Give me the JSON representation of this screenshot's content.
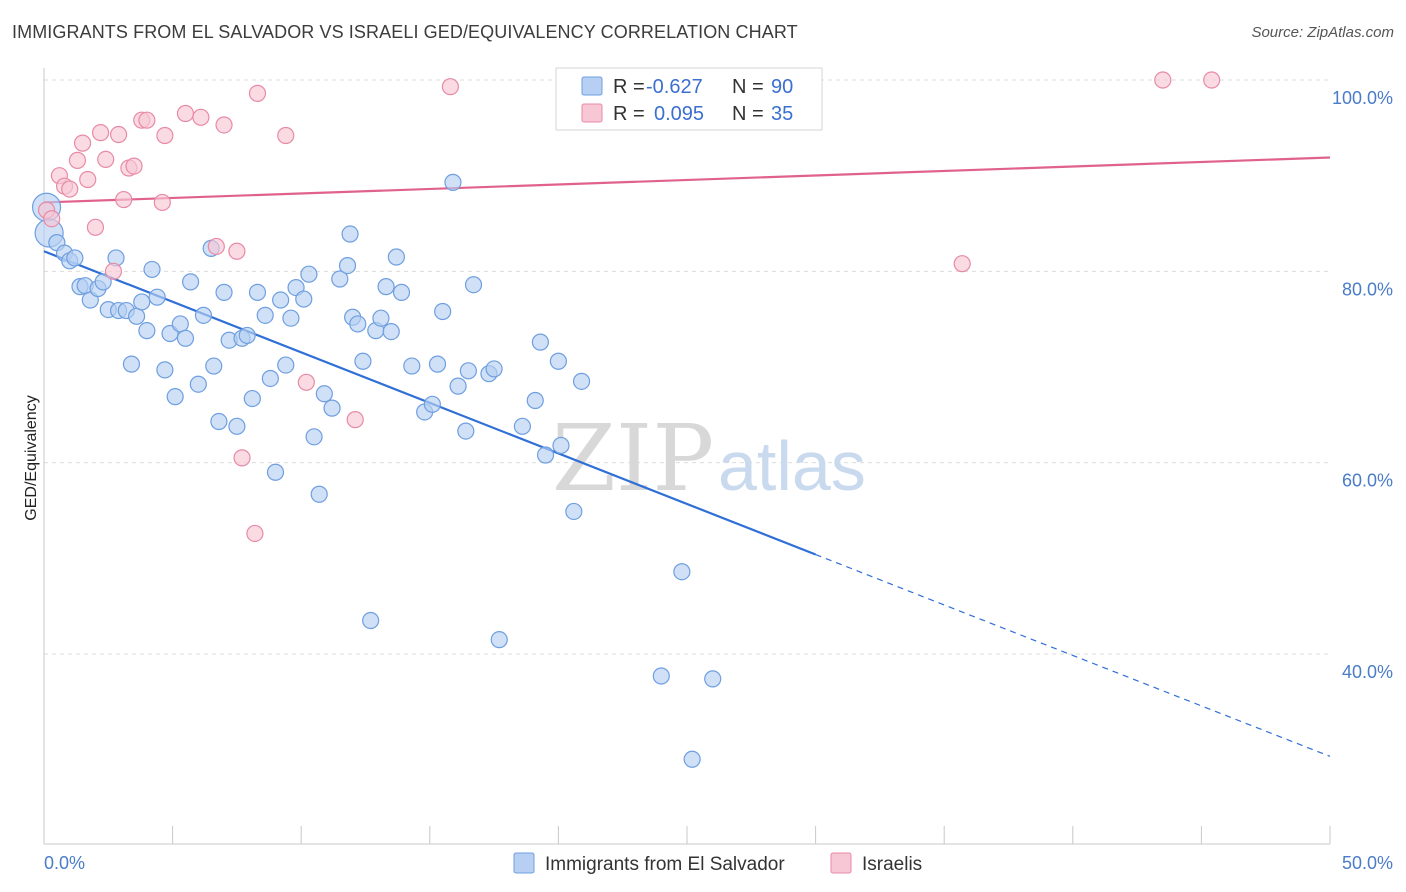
{
  "header": {
    "title": "IMMIGRANTS FROM EL SALVADOR VS ISRAELI GED/EQUIVALENCY CORRELATION CHART",
    "source": "Source: ZipAtlas.com"
  },
  "watermark": {
    "zip": "ZIP",
    "atlas": "atlas"
  },
  "legend": {
    "rows": [
      {
        "r_label": "R =",
        "r_value": "-0.627",
        "n_label": "N =",
        "n_value": "90",
        "color": "#a9c6ee"
      },
      {
        "r_label": "R =",
        "r_value": "0.095",
        "n_label": "N =",
        "n_value": "35",
        "color": "#f5b8c9"
      }
    ]
  },
  "chart_data": {
    "type": "scatter",
    "title": "IMMIGRANTS FROM EL SALVADOR VS ISRAELI GED/EQUIVALENCY CORRELATION CHART",
    "xlabel": "",
    "ylabel": "GED/Equivalency",
    "xlim": [
      0,
      50
    ],
    "ylim": [
      20,
      100
    ],
    "x_ticks": [
      "0.0%",
      "50.0%"
    ],
    "y_ticks": [
      {
        "value": 100,
        "label": "100.0%"
      },
      {
        "value": 80,
        "label": "80.0%"
      },
      {
        "value": 60,
        "label": "60.0%"
      },
      {
        "value": 40,
        "label": "40.0%"
      }
    ],
    "grid": true,
    "legend_position": "bottom",
    "series": [
      {
        "name": "Immigrants from El Salvador",
        "color": "#6f9fe0",
        "fill": "#b6cff2",
        "points": [
          [
            0.1,
            86.7
          ],
          [
            0.2,
            84.0
          ],
          [
            0.5,
            83.0
          ],
          [
            0.8,
            81.9
          ],
          [
            1.0,
            81.1
          ],
          [
            1.2,
            81.4
          ],
          [
            1.4,
            78.4
          ],
          [
            1.6,
            78.5
          ],
          [
            1.8,
            77.0
          ],
          [
            2.1,
            78.2
          ],
          [
            2.3,
            78.9
          ],
          [
            2.5,
            76.0
          ],
          [
            2.8,
            81.4
          ],
          [
            2.9,
            75.9
          ],
          [
            3.2,
            75.9
          ],
          [
            3.4,
            70.3
          ],
          [
            3.6,
            75.3
          ],
          [
            3.8,
            76.8
          ],
          [
            4.0,
            73.8
          ],
          [
            4.2,
            80.2
          ],
          [
            4.4,
            77.3
          ],
          [
            4.7,
            69.7
          ],
          [
            4.9,
            73.5
          ],
          [
            5.1,
            66.9
          ],
          [
            5.3,
            74.5
          ],
          [
            5.5,
            73.0
          ],
          [
            5.7,
            78.9
          ],
          [
            6.0,
            68.2
          ],
          [
            6.2,
            75.4
          ],
          [
            6.5,
            82.4
          ],
          [
            6.6,
            70.1
          ],
          [
            6.8,
            64.3
          ],
          [
            7.0,
            77.8
          ],
          [
            7.2,
            72.8
          ],
          [
            7.5,
            63.8
          ],
          [
            7.7,
            73.0
          ],
          [
            7.9,
            73.3
          ],
          [
            8.1,
            66.7
          ],
          [
            8.3,
            77.8
          ],
          [
            8.6,
            75.4
          ],
          [
            8.8,
            68.8
          ],
          [
            9.0,
            59.0
          ],
          [
            9.2,
            77.0
          ],
          [
            9.4,
            70.2
          ],
          [
            9.6,
            75.1
          ],
          [
            9.8,
            78.3
          ],
          [
            10.1,
            77.1
          ],
          [
            10.3,
            79.7
          ],
          [
            10.5,
            62.7
          ],
          [
            10.7,
            56.7
          ],
          [
            10.9,
            67.2
          ],
          [
            11.2,
            65.7
          ],
          [
            11.5,
            79.2
          ],
          [
            11.8,
            80.6
          ],
          [
            11.9,
            83.9
          ],
          [
            12.0,
            75.2
          ],
          [
            12.2,
            74.5
          ],
          [
            12.4,
            70.6
          ],
          [
            12.7,
            43.5
          ],
          [
            12.9,
            73.8
          ],
          [
            13.1,
            75.1
          ],
          [
            13.3,
            78.4
          ],
          [
            13.5,
            73.7
          ],
          [
            13.7,
            81.5
          ],
          [
            13.9,
            77.8
          ],
          [
            14.3,
            70.1
          ],
          [
            14.8,
            65.3
          ],
          [
            15.1,
            66.1
          ],
          [
            15.3,
            70.3
          ],
          [
            15.5,
            75.8
          ],
          [
            15.9,
            89.3
          ],
          [
            16.1,
            68.0
          ],
          [
            16.4,
            63.3
          ],
          [
            16.5,
            69.6
          ],
          [
            16.7,
            78.6
          ],
          [
            17.3,
            69.3
          ],
          [
            17.5,
            69.8
          ],
          [
            17.7,
            41.5
          ],
          [
            18.6,
            63.8
          ],
          [
            19.1,
            66.5
          ],
          [
            19.3,
            72.6
          ],
          [
            19.5,
            60.8
          ],
          [
            20.0,
            70.6
          ],
          [
            20.1,
            61.8
          ],
          [
            20.6,
            54.9
          ],
          [
            20.9,
            68.5
          ],
          [
            24.0,
            37.7
          ],
          [
            24.8,
            48.6
          ],
          [
            25.2,
            29.0
          ],
          [
            26.0,
            37.4
          ]
        ],
        "trend": {
          "x0": 0,
          "y0": 82.1,
          "x1": 30,
          "y1": 50.4,
          "dashed_to_x": 50,
          "dashed_to_y": 29.3
        }
      },
      {
        "name": "Israelis",
        "color": "#e88aa6",
        "fill": "#f8c7d5",
        "points": [
          [
            0.1,
            86.4
          ],
          [
            0.3,
            85.5
          ],
          [
            0.6,
            90.0
          ],
          [
            0.8,
            88.9
          ],
          [
            1.0,
            88.6
          ],
          [
            1.3,
            91.6
          ],
          [
            1.5,
            93.4
          ],
          [
            1.7,
            89.6
          ],
          [
            2.0,
            84.6
          ],
          [
            2.2,
            94.5
          ],
          [
            2.4,
            91.7
          ],
          [
            2.7,
            80.0
          ],
          [
            2.9,
            94.3
          ],
          [
            3.1,
            87.5
          ],
          [
            3.3,
            90.8
          ],
          [
            3.5,
            91.0
          ],
          [
            3.8,
            95.8
          ],
          [
            4.0,
            95.8
          ],
          [
            4.6,
            87.2
          ],
          [
            4.7,
            94.2
          ],
          [
            5.5,
            96.5
          ],
          [
            6.1,
            96.1
          ],
          [
            6.7,
            82.6
          ],
          [
            7.0,
            95.3
          ],
          [
            7.5,
            82.1
          ],
          [
            7.7,
            60.5
          ],
          [
            8.2,
            52.6
          ],
          [
            8.3,
            98.6
          ],
          [
            9.4,
            94.2
          ],
          [
            10.2,
            68.4
          ],
          [
            12.1,
            64.5
          ],
          [
            15.8,
            99.3
          ],
          [
            35.7,
            80.8
          ],
          [
            43.5,
            100.0
          ],
          [
            45.4,
            100.0
          ]
        ],
        "trend": {
          "x0": 0,
          "y0": 87.2,
          "x1": 50,
          "y1": 91.9
        }
      }
    ]
  },
  "bottom_legend": {
    "items": [
      {
        "label": "Immigrants from El Salvador",
        "color": "#b6cff2",
        "border": "#6f9fe0"
      },
      {
        "label": "Israelis",
        "color": "#f8c7d5",
        "border": "#e88aa6"
      }
    ]
  }
}
